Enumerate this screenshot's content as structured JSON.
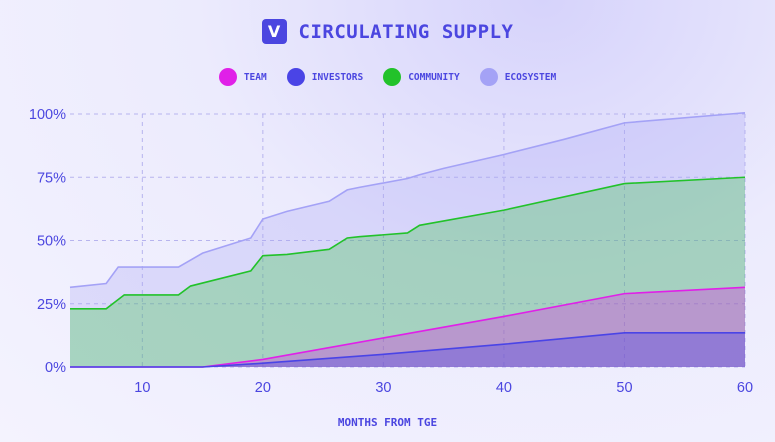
{
  "header": {
    "title": "CIRCULATING SUPPLY",
    "logo_letter": "V"
  },
  "legend": [
    {
      "label": "TEAM",
      "color": "#e020e8"
    },
    {
      "label": "INVESTORS",
      "color": "#4a44e6"
    },
    {
      "label": "COMMUNITY",
      "color": "#22c22a"
    },
    {
      "label": "ECOSYSTEM",
      "color": "#a4a2f6"
    }
  ],
  "chart_data": {
    "type": "area",
    "stacked": true,
    "xlabel": "MONTHS FROM TGE",
    "ylabel": "",
    "xlim": [
      4,
      60
    ],
    "ylim": [
      0,
      100
    ],
    "x_ticks": [
      10,
      20,
      30,
      40,
      50,
      60
    ],
    "y_ticks": [
      0,
      25,
      50,
      75,
      100
    ],
    "y_tick_labels": [
      "0%",
      "25%",
      "50%",
      "75%",
      "100%"
    ],
    "grid": true,
    "legend_position": "top-center",
    "series": [
      {
        "name": "INVESTORS",
        "color": "#4a44e6",
        "points": [
          [
            4,
            0
          ],
          [
            15,
            0
          ],
          [
            20,
            1.5
          ],
          [
            30,
            5
          ],
          [
            40,
            9
          ],
          [
            50,
            13.5
          ],
          [
            60,
            13.5
          ]
        ]
      },
      {
        "name": "TEAM",
        "color": "#e020e8",
        "points": [
          [
            4,
            0
          ],
          [
            15,
            0
          ],
          [
            20,
            3
          ],
          [
            30,
            11.5
          ],
          [
            40,
            20
          ],
          [
            50,
            29
          ],
          [
            60,
            31.5
          ]
        ]
      },
      {
        "name": "COMMUNITY",
        "color": "#22c22a",
        "points": [
          [
            4,
            23
          ],
          [
            7,
            23
          ],
          [
            8.5,
            28.5
          ],
          [
            13,
            28.5
          ],
          [
            14,
            32
          ],
          [
            19,
            38
          ],
          [
            20,
            44
          ],
          [
            22,
            44.5
          ],
          [
            25.5,
            46.5
          ],
          [
            27,
            51
          ],
          [
            28,
            51.5
          ],
          [
            32,
            53
          ],
          [
            33,
            56
          ],
          [
            40,
            62
          ],
          [
            50,
            72.5
          ],
          [
            60,
            75
          ]
        ]
      },
      {
        "name": "ECOSYSTEM",
        "color": "#a4a2f6",
        "points": [
          [
            4,
            31.5
          ],
          [
            7,
            33
          ],
          [
            8,
            39.5
          ],
          [
            13,
            39.5
          ],
          [
            15,
            45
          ],
          [
            19,
            51
          ],
          [
            20,
            58.5
          ],
          [
            22,
            61.5
          ],
          [
            25.5,
            65.5
          ],
          [
            27,
            70
          ],
          [
            28,
            71
          ],
          [
            32,
            74.5
          ],
          [
            33,
            76
          ],
          [
            35,
            78.5
          ],
          [
            40,
            84
          ],
          [
            45,
            90
          ],
          [
            50,
            96.5
          ],
          [
            60,
            100.5
          ]
        ]
      }
    ]
  }
}
